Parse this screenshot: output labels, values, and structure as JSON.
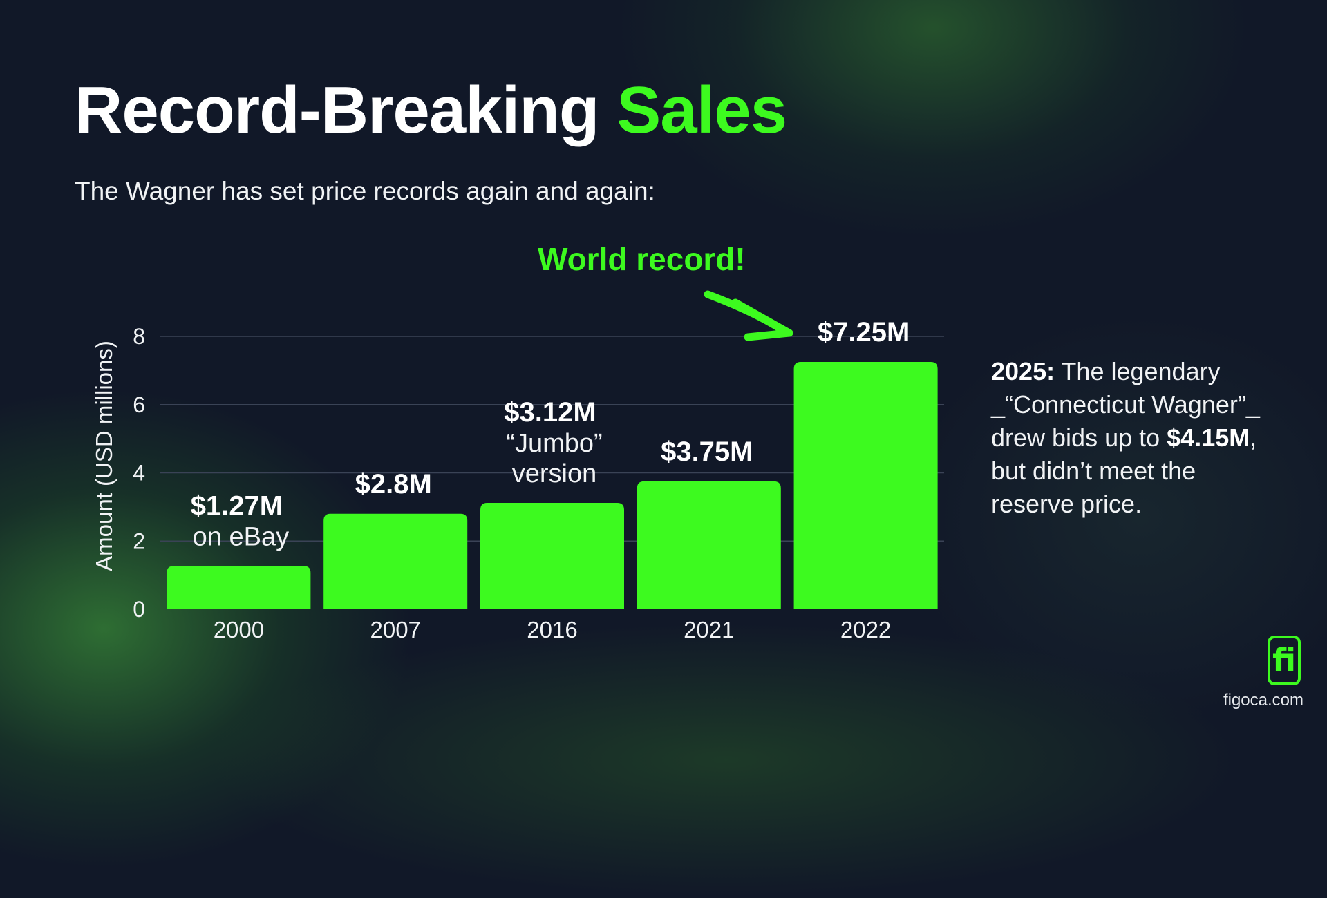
{
  "header": {
    "title_main": "Record-Breaking",
    "title_accent": "Sales",
    "subtitle": "The Wagner has set price records again and again:"
  },
  "callout": "World record!",
  "colors": {
    "background": "#111828",
    "accent": "#3dfa1f",
    "text": "#ffffff",
    "grid": "#3a4356"
  },
  "chart_data": {
    "type": "bar",
    "ylabel": "Amount (USD millions)",
    "xlabel": "",
    "categories": [
      "2000",
      "2007",
      "2016",
      "2021",
      "2022"
    ],
    "values": [
      1.27,
      2.8,
      3.12,
      3.75,
      7.25
    ],
    "value_labels": [
      "$1.27M",
      "$2.8M",
      "$3.12M",
      "$3.75M",
      "$7.25M"
    ],
    "annotations": [
      [
        "on eBay"
      ],
      [],
      [
        "“Jumbo”",
        "version"
      ],
      [],
      []
    ],
    "ylim": [
      0,
      8
    ],
    "yticks": [
      0,
      2,
      4,
      6,
      8
    ],
    "grid": true,
    "bar_color": "#3dfa1f"
  },
  "side_note": {
    "year": "2025:",
    "text_1": " The legendary _“Connecticut Wagner”_ drew bids up to ",
    "amount": "$4.15M",
    "text_2": ", but didn’t meet the reserve price."
  },
  "brand": {
    "logo_text": "fi",
    "logo_icon": "figoca-logo-icon",
    "site": "figoca.com"
  }
}
